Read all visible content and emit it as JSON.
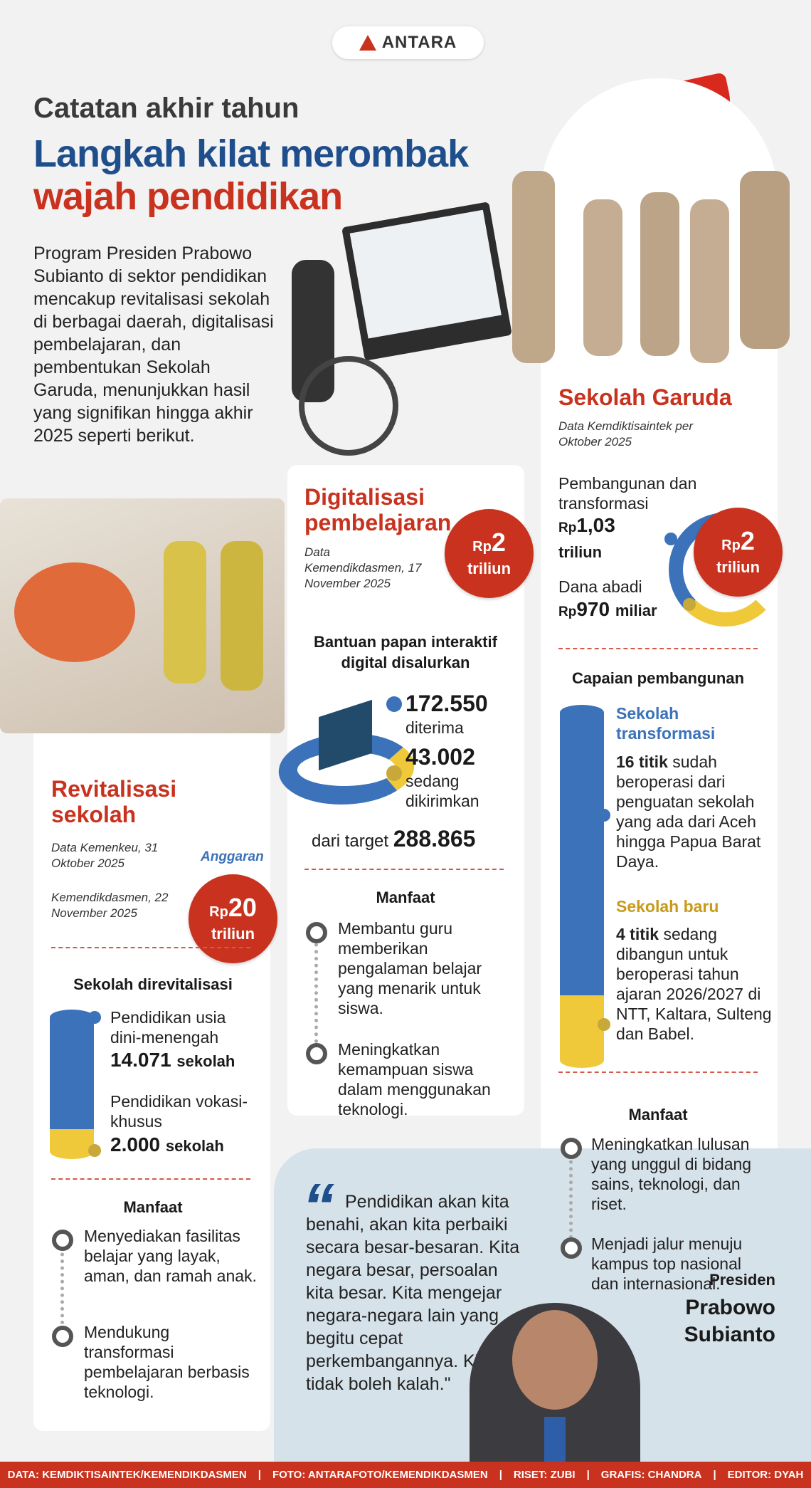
{
  "brand": {
    "logo_text": "ANTARA"
  },
  "header": {
    "kicker": "Catatan akhir tahun",
    "title_line1": "Langkah kilat merombak",
    "title_line2": "wajah pendidikan"
  },
  "intro": "Program Presiden Prabowo Subianto di sektor pendidikan mencakup revitalisasi sekolah di berbagai daerah, digitalisasi pembelajaran, dan pembentukan Sekolah Garuda, menunjukkan hasil yang signifikan hingga akhir 2025 seperti berikut.",
  "colors": {
    "red": "#c8321e",
    "blue": "#3b72b9",
    "yellow": "#f0c93a",
    "title_blue": "#1f4e8c"
  },
  "revitalisasi": {
    "title": "Revitalisasi sekolah",
    "source1": "Data Kemenkeu, 31 Oktober 2025",
    "source2": "Kemendikdasmen, 22 November 2025",
    "budget_label": "Anggaran",
    "budget_prefix": "Rp",
    "budget_value": "20",
    "budget_unit": "triliun",
    "chart_title": "Sekolah direvitalisasi",
    "items": [
      {
        "label": "Pendidikan usia dini-menengah",
        "value": "14.071",
        "unit": "sekolah"
      },
      {
        "label": "Pendidikan vokasi-khusus",
        "value": "2.000",
        "unit": "sekolah"
      }
    ],
    "benefit_title": "Manfaat",
    "benefits": [
      "Menyediakan fasilitas belajar yang layak, aman, dan ramah anak.",
      "Mendukung transformasi pembelajaran berbasis teknologi."
    ]
  },
  "digitalisasi": {
    "title": "Digitalisasi pembelajaran",
    "source": "Data Kemendikdasmen, 17 November 2025",
    "budget_prefix": "Rp",
    "budget_value": "2",
    "budget_unit": "triliun",
    "chart_title": "Bantuan papan interaktif digital disalurkan",
    "items": [
      {
        "value": "172.550",
        "label": "diterima"
      },
      {
        "value": "43.002",
        "label": "sedang dikirimkan"
      }
    ],
    "target_label": "dari target",
    "target_value": "288.865",
    "benefit_title": "Manfaat",
    "benefits": [
      "Membantu guru memberikan pengalaman belajar yang menarik untuk siswa.",
      "Meningkatkan kemampuan siswa dalam menggunakan teknologi."
    ]
  },
  "garuda": {
    "title": "Sekolah Garuda",
    "source": "Data Kemdiktisaintek per Oktober 2025",
    "budget_prefix": "Rp",
    "budget_value": "2",
    "budget_unit": "triliun",
    "fund1_label": "Pembangunan dan transformasi",
    "fund1_prefix": "Rp",
    "fund1_value": "1,03",
    "fund1_unit": "triliun",
    "fund2_label": "Dana abadi",
    "fund2_prefix": "Rp",
    "fund2_value": "970",
    "fund2_unit": "miliar",
    "chart_title": "Capaian pembangunan",
    "transform_title": "Sekolah transformasi",
    "transform_value": "16 titik",
    "transform_text": "sudah beroperasi dari penguatan sekolah yang ada dari Aceh hingga Papua Barat Daya.",
    "new_title": "Sekolah baru",
    "new_value": "4 titik",
    "new_text": "sedang dibangun untuk beroperasi tahun ajaran 2026/2027 di NTT, Kaltara, Sulteng dan Babel.",
    "benefit_title": "Manfaat",
    "benefits": [
      "Meningkatkan lulusan yang unggul di bidang sains, teknologi, dan riset.",
      "Menjadi jalur menuju kampus top nasional dan internasional."
    ]
  },
  "quote": {
    "text": "Pendidikan akan kita benahi, akan kita perbaiki secara besar-besaran. Kita negara besar, persoalan kita besar. Kita mengejar negara-negara lain yang begitu cepat perkembangannya. Kita tidak boleh kalah.\"",
    "speaker_role": "Presiden",
    "speaker_name": "Prabowo Subianto"
  },
  "footer": [
    "DATA: KEMDIKTISAINTEK/KEMENDIKDASMEN",
    "FOTO: ANTARAFOTO/KEMENDIKDASMEN",
    "RISET: ZUBI",
    "GRAFIS: CHANDRA",
    "EDITOR: DYAH"
  ]
}
